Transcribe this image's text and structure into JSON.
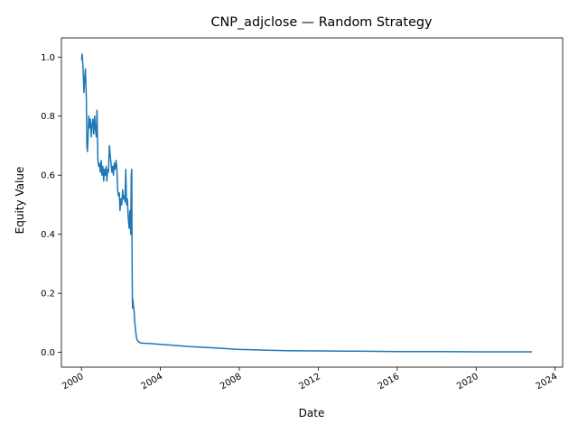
{
  "chart_data": {
    "type": "line",
    "title": "CNP_adjclose — Random Strategy",
    "xlabel": "Date",
    "ylabel": "Equity Value",
    "xlim": [
      "1998-12-26",
      "2024-05-20"
    ],
    "ylim": [
      -0.05,
      1.065
    ],
    "x_ticks": [
      "2000",
      "2004",
      "2008",
      "2012",
      "2016",
      "2020",
      "2024"
    ],
    "y_ticks": [
      "0.0",
      "0.2",
      "0.4",
      "0.6",
      "0.8",
      "1.0"
    ],
    "grid": false,
    "legend": "none",
    "line_color": "#1f77b4",
    "series": [
      {
        "x": [
          "2000-01-03",
          "2000-01-15",
          "2000-02-01",
          "2000-02-15",
          "2000-03-01",
          "2000-03-15",
          "2000-04-01",
          "2000-04-10",
          "2000-04-20",
          "2000-05-01",
          "2000-05-15",
          "2000-06-01",
          "2000-06-15",
          "2000-07-01",
          "2000-07-15",
          "2000-08-01",
          "2000-08-15",
          "2000-09-01",
          "2000-09-15",
          "2000-10-01",
          "2000-10-15",
          "2000-11-01",
          "2000-11-15",
          "2000-12-01",
          "2000-12-15",
          "2001-01-01",
          "2001-01-15",
          "2001-02-01",
          "2001-02-15",
          "2001-03-01",
          "2001-03-15",
          "2001-04-01",
          "2001-04-15",
          "2001-05-01",
          "2001-05-15",
          "2001-06-01",
          "2001-06-15",
          "2001-07-01",
          "2001-07-15",
          "2001-08-01",
          "2001-08-15",
          "2001-09-01",
          "2001-09-15",
          "2001-10-01",
          "2001-10-15",
          "2001-11-01",
          "2001-11-15",
          "2001-12-01",
          "2001-12-15",
          "2002-01-01",
          "2002-01-15",
          "2002-02-01",
          "2002-02-15",
          "2002-03-01",
          "2002-03-15",
          "2002-04-01",
          "2002-04-15",
          "2002-05-01",
          "2002-05-15",
          "2002-06-01",
          "2002-06-15",
          "2002-07-01",
          "2002-07-10",
          "2002-07-20",
          "2002-07-25",
          "2002-08-01",
          "2002-08-05",
          "2002-08-10",
          "2002-08-20",
          "2002-09-01",
          "2002-09-15",
          "2002-10-01",
          "2002-10-15",
          "2002-11-01",
          "2002-12-01",
          "2003-01-01",
          "2003-03-01",
          "2003-06-01",
          "2003-09-01",
          "2004-01-01",
          "2004-06-01",
          "2005-01-01",
          "2005-06-01",
          "2006-01-01",
          "2007-01-01",
          "2008-01-01",
          "2008-10-01",
          "2009-06-01",
          "2010-06-01",
          "2012-01-01",
          "2014-01-01",
          "2016-01-01",
          "2018-01-01",
          "2020-01-01",
          "2022-01-01",
          "2022-11-01"
        ],
        "y": [
          0.99,
          1.01,
          0.96,
          0.88,
          0.93,
          0.96,
          0.86,
          0.7,
          0.68,
          0.72,
          0.8,
          0.76,
          0.79,
          0.73,
          0.77,
          0.79,
          0.74,
          0.8,
          0.76,
          0.73,
          0.82,
          0.65,
          0.63,
          0.64,
          0.61,
          0.65,
          0.6,
          0.63,
          0.58,
          0.62,
          0.6,
          0.63,
          0.58,
          0.62,
          0.61,
          0.7,
          0.67,
          0.64,
          0.61,
          0.63,
          0.6,
          0.64,
          0.62,
          0.65,
          0.63,
          0.55,
          0.53,
          0.54,
          0.48,
          0.52,
          0.5,
          0.55,
          0.52,
          0.53,
          0.51,
          0.62,
          0.5,
          0.52,
          0.46,
          0.42,
          0.48,
          0.4,
          0.6,
          0.62,
          0.35,
          0.17,
          0.15,
          0.18,
          0.16,
          0.14,
          0.1,
          0.07,
          0.05,
          0.04,
          0.035,
          0.032,
          0.031,
          0.03,
          0.029,
          0.027,
          0.025,
          0.022,
          0.02,
          0.018,
          0.014,
          0.01,
          0.009,
          0.007,
          0.006,
          0.005,
          0.004,
          0.003,
          0.003,
          0.002,
          0.002,
          0.002
        ]
      }
    ]
  }
}
